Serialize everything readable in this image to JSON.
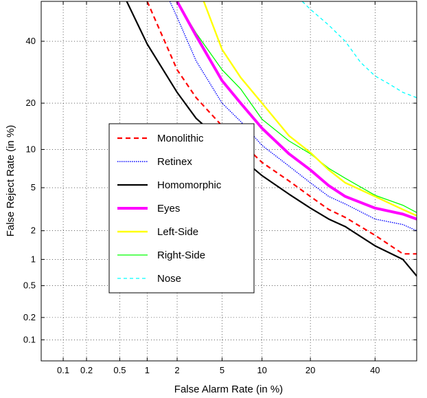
{
  "chart_data": {
    "type": "line",
    "title": "",
    "xlabel": "False Alarm Rate (in %)",
    "ylabel": "False Reject Rate (in %)",
    "x_scale": "probit",
    "y_scale": "probit",
    "xlim": [
      0.05,
      55
    ],
    "ylim": [
      0.05,
      55
    ],
    "x_ticks": [
      "0.1",
      "0.2",
      "0.5",
      "1",
      "2",
      "5",
      "10",
      "20",
      "40"
    ],
    "y_ticks": [
      "0.1",
      "0.2",
      "0.5",
      "1",
      "2",
      "5",
      "10",
      "20",
      "40"
    ],
    "grid": true,
    "legend_position": "center-left",
    "series": [
      {
        "name": "Monolithic",
        "color": "#ff0000",
        "style": "dashed",
        "x": [
          1,
          2,
          3,
          5,
          7,
          10,
          15,
          20,
          25,
          30,
          40,
          50,
          55
        ],
        "y": [
          55,
          30,
          21.5,
          14.5,
          11.3,
          8,
          5.7,
          4.2,
          3.2,
          2.7,
          1.8,
          1.15,
          1.15
        ]
      },
      {
        "name": "Retinex",
        "color": "#0000ff",
        "style": "dotted",
        "x": [
          1.7,
          2,
          3,
          5,
          7,
          10,
          15,
          20,
          25,
          30,
          40,
          50,
          55
        ],
        "y": [
          55,
          49,
          33,
          20,
          15.5,
          10.7,
          7.5,
          5.5,
          4.2,
          3.6,
          2.6,
          2.3,
          2
        ]
      },
      {
        "name": "Homomorphic",
        "color": "#000000",
        "style": "solid",
        "x": [
          0.6,
          1,
          2,
          3,
          5,
          7,
          10,
          15,
          20,
          25,
          30,
          40,
          50,
          55
        ],
        "y": [
          55,
          39,
          23,
          16.2,
          11.4,
          8.7,
          6.3,
          4.4,
          3.3,
          2.6,
          2.2,
          1.4,
          1,
          0.65
        ]
      },
      {
        "name": "Eyes",
        "color": "#ff00ff",
        "style": "solid-thick",
        "x": [
          2,
          3,
          5,
          7,
          10,
          15,
          20,
          25,
          30,
          40,
          50,
          55
        ],
        "y": [
          55,
          42,
          26.5,
          20,
          14,
          9.3,
          7,
          5.2,
          4.2,
          3.3,
          2.9,
          2.6
        ]
      },
      {
        "name": "Left-Side",
        "color": "#ffff00",
        "style": "solid",
        "x": [
          3.5,
          5,
          7,
          10,
          15,
          20,
          25,
          30,
          40,
          50,
          55
        ],
        "y": [
          55,
          37,
          27.5,
          20,
          12.5,
          9.5,
          7,
          5.5,
          4.2,
          3.2,
          2.8
        ]
      },
      {
        "name": "Right-Side",
        "color": "#00ff00",
        "style": "solid",
        "x": [
          2,
          3,
          5,
          7,
          10,
          15,
          20,
          25,
          30,
          40,
          50,
          55
        ],
        "y": [
          55,
          43,
          30,
          24,
          16,
          11.5,
          9.3,
          7.2,
          6,
          4.3,
          3.5,
          3
        ]
      },
      {
        "name": "Nose",
        "color": "#00ffff",
        "style": "dashed",
        "x": [
          18,
          20,
          25,
          30,
          35,
          40,
          45,
          50,
          55
        ],
        "y": [
          55,
          52,
          46,
          40,
          32.5,
          28,
          25.5,
          23,
          21.5
        ]
      }
    ]
  }
}
